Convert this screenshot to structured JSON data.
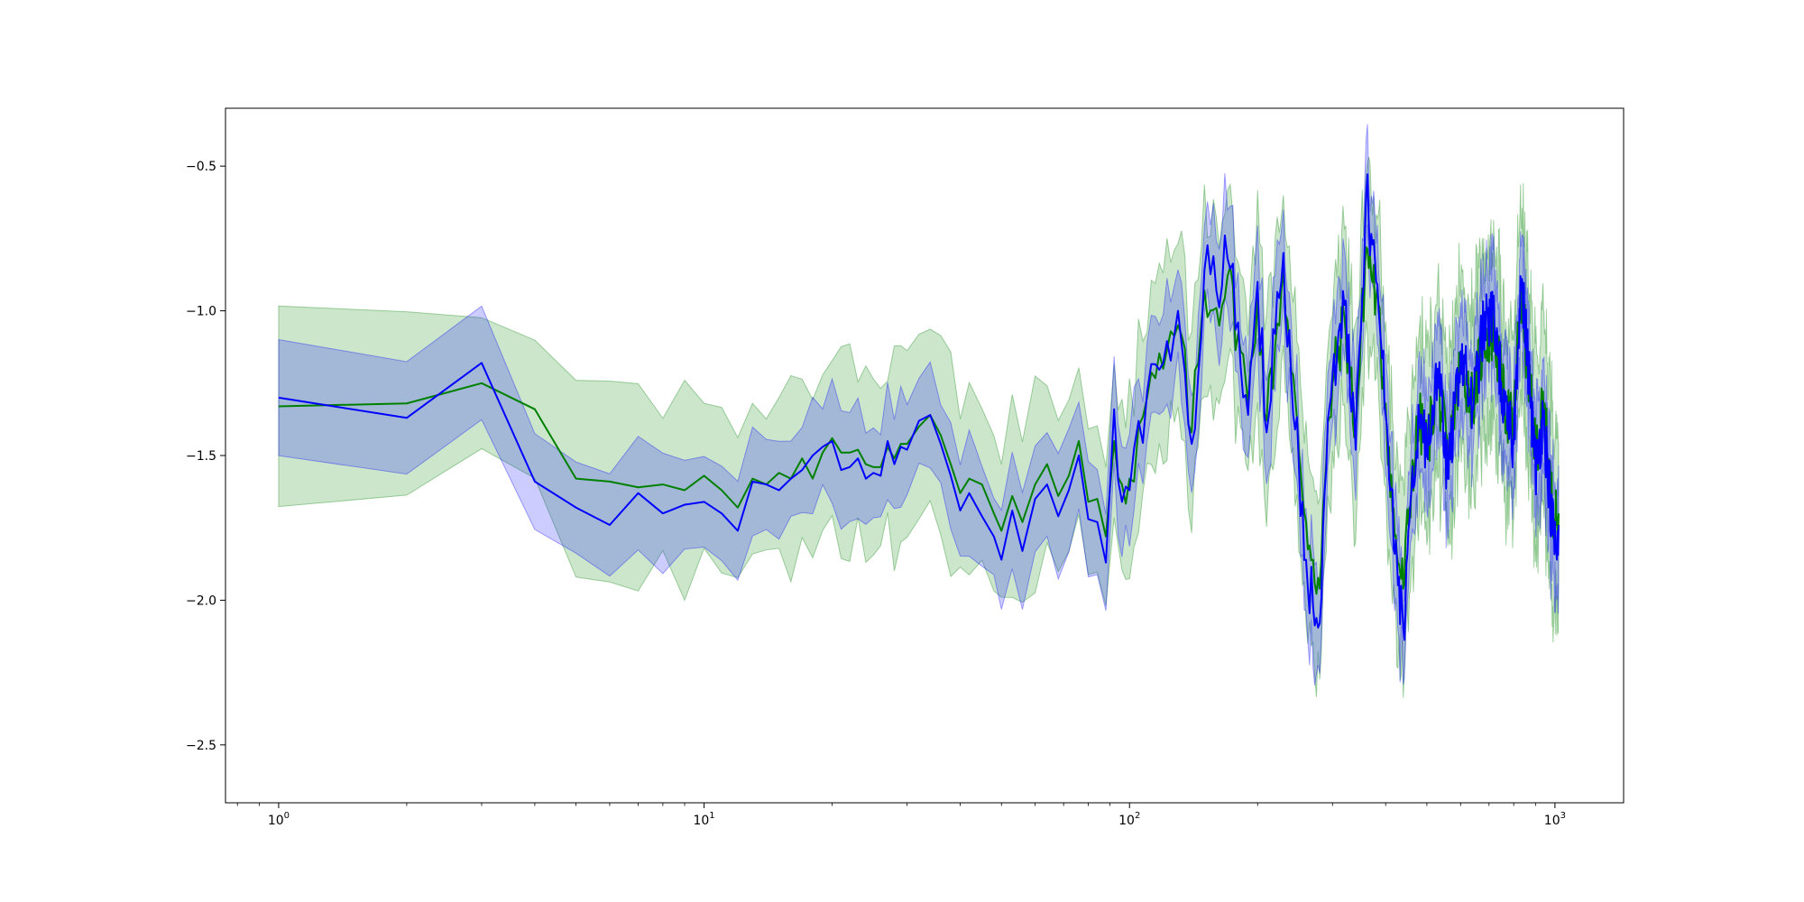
{
  "chart_data": {
    "type": "line",
    "title": "",
    "xlabel": "",
    "ylabel": "",
    "xscale": "log",
    "xlim": [
      0.75,
      1450
    ],
    "ylim": [
      -2.7,
      -0.3
    ],
    "grid": false,
    "legend": "none",
    "x_ticks": [
      {
        "base": "10",
        "exp": "0",
        "value": 1
      },
      {
        "base": "10",
        "exp": "1",
        "value": 10
      },
      {
        "base": "10",
        "exp": "2",
        "value": 100
      },
      {
        "base": "10",
        "exp": "3",
        "value": 1000
      }
    ],
    "y_ticks": [
      {
        "label": "−0.5",
        "value": -0.5
      },
      {
        "label": "−1.0",
        "value": -1.0
      },
      {
        "label": "−1.5",
        "value": -1.5
      },
      {
        "label": "−2.0",
        "value": -2.0
      },
      {
        "label": "−2.5",
        "value": -2.5
      }
    ],
    "series": [
      {
        "color": "#008000",
        "band_color": "#008000",
        "band_opacity": 0.2,
        "band_width": 0.3,
        "points": [
          [
            1,
            -1.33
          ],
          [
            2,
            -1.32
          ],
          [
            3,
            -1.25
          ],
          [
            4,
            -1.34
          ],
          [
            5,
            -1.58
          ],
          [
            6,
            -1.59
          ],
          [
            7,
            -1.61
          ],
          [
            8,
            -1.6
          ],
          [
            9,
            -1.62
          ],
          [
            10,
            -1.57
          ],
          [
            11,
            -1.62
          ],
          [
            12,
            -1.68
          ],
          [
            13,
            -1.58
          ],
          [
            14,
            -1.6
          ],
          [
            15,
            -1.56
          ],
          [
            16,
            -1.58
          ],
          [
            17,
            -1.51
          ],
          [
            18,
            -1.58
          ],
          [
            19,
            -1.49
          ],
          [
            20,
            -1.44
          ],
          [
            21,
            -1.49
          ],
          [
            22,
            -1.49
          ],
          [
            23,
            -1.48
          ],
          [
            24,
            -1.53
          ],
          [
            25,
            -1.54
          ],
          [
            26,
            -1.54
          ],
          [
            27,
            -1.47
          ],
          [
            28,
            -1.51
          ],
          [
            29,
            -1.46
          ],
          [
            30,
            -1.46
          ],
          [
            32,
            -1.4
          ],
          [
            34,
            -1.36
          ],
          [
            36,
            -1.43
          ],
          [
            38,
            -1.53
          ],
          [
            40,
            -1.63
          ],
          [
            42,
            -1.58
          ],
          [
            45,
            -1.6
          ],
          [
            48,
            -1.7
          ],
          [
            50,
            -1.76
          ],
          [
            53,
            -1.64
          ],
          [
            56,
            -1.73
          ],
          [
            60,
            -1.6
          ],
          [
            64,
            -1.53
          ],
          [
            68,
            -1.64
          ],
          [
            72,
            -1.57
          ],
          [
            76,
            -1.45
          ],
          [
            80,
            -1.66
          ],
          [
            84,
            -1.65
          ],
          [
            88,
            -1.78
          ],
          [
            92,
            -1.45
          ],
          [
            96,
            -1.6
          ],
          [
            100,
            -1.58
          ],
          [
            110,
            -1.3
          ],
          [
            120,
            -1.2
          ],
          [
            130,
            -1.05
          ],
          [
            140,
            -1.42
          ],
          [
            150,
            -0.93
          ],
          [
            160,
            -0.99
          ],
          [
            170,
            -0.88
          ],
          [
            180,
            -1.08
          ],
          [
            190,
            -1.32
          ],
          [
            200,
            -0.95
          ],
          [
            210,
            -1.38
          ],
          [
            220,
            -1.12
          ],
          [
            230,
            -0.86
          ],
          [
            240,
            -1.21
          ],
          [
            250,
            -1.48
          ],
          [
            260,
            -1.73
          ],
          [
            270,
            -1.86
          ],
          [
            280,
            -1.96
          ],
          [
            290,
            -1.52
          ],
          [
            300,
            -1.25
          ],
          [
            320,
            -1.02
          ],
          [
            340,
            -1.42
          ],
          [
            360,
            -0.78
          ],
          [
            380,
            -0.95
          ],
          [
            400,
            -1.32
          ],
          [
            420,
            -1.78
          ],
          [
            440,
            -1.96
          ],
          [
            460,
            -1.58
          ],
          [
            480,
            -1.38
          ],
          [
            500,
            -1.47
          ],
          [
            530,
            -1.24
          ],
          [
            560,
            -1.53
          ],
          [
            600,
            -1.18
          ],
          [
            640,
            -1.31
          ],
          [
            680,
            -1.1
          ],
          [
            720,
            -1.07
          ],
          [
            760,
            -1.32
          ],
          [
            800,
            -1.41
          ],
          [
            830,
            -0.92
          ],
          [
            860,
            -1.17
          ],
          [
            900,
            -1.49
          ],
          [
            940,
            -1.33
          ],
          [
            980,
            -1.64
          ],
          [
            1010,
            -1.74
          ],
          [
            1020,
            -1.7
          ]
        ]
      },
      {
        "color": "#0000ff",
        "band_color": "#0000ff",
        "band_opacity": 0.2,
        "band_width": 0.17,
        "points": [
          [
            1,
            -1.3
          ],
          [
            2,
            -1.37
          ],
          [
            3,
            -1.18
          ],
          [
            4,
            -1.59
          ],
          [
            5,
            -1.68
          ],
          [
            6,
            -1.74
          ],
          [
            7,
            -1.63
          ],
          [
            8,
            -1.7
          ],
          [
            9,
            -1.67
          ],
          [
            10,
            -1.66
          ],
          [
            11,
            -1.7
          ],
          [
            12,
            -1.76
          ],
          [
            13,
            -1.59
          ],
          [
            14,
            -1.6
          ],
          [
            15,
            -1.62
          ],
          [
            16,
            -1.58
          ],
          [
            17,
            -1.55
          ],
          [
            18,
            -1.5
          ],
          [
            19,
            -1.47
          ],
          [
            20,
            -1.45
          ],
          [
            21,
            -1.55
          ],
          [
            22,
            -1.54
          ],
          [
            23,
            -1.51
          ],
          [
            24,
            -1.58
          ],
          [
            25,
            -1.56
          ],
          [
            26,
            -1.57
          ],
          [
            27,
            -1.45
          ],
          [
            28,
            -1.53
          ],
          [
            29,
            -1.47
          ],
          [
            30,
            -1.48
          ],
          [
            32,
            -1.38
          ],
          [
            34,
            -1.36
          ],
          [
            36,
            -1.46
          ],
          [
            38,
            -1.57
          ],
          [
            40,
            -1.69
          ],
          [
            42,
            -1.63
          ],
          [
            45,
            -1.71
          ],
          [
            48,
            -1.78
          ],
          [
            50,
            -1.86
          ],
          [
            53,
            -1.69
          ],
          [
            56,
            -1.83
          ],
          [
            60,
            -1.65
          ],
          [
            64,
            -1.6
          ],
          [
            68,
            -1.71
          ],
          [
            72,
            -1.62
          ],
          [
            76,
            -1.5
          ],
          [
            80,
            -1.72
          ],
          [
            84,
            -1.73
          ],
          [
            88,
            -1.87
          ],
          [
            92,
            -1.34
          ],
          [
            96,
            -1.66
          ],
          [
            100,
            -1.62
          ],
          [
            110,
            -1.28
          ],
          [
            120,
            -1.18
          ],
          [
            130,
            -1.0
          ],
          [
            140,
            -1.46
          ],
          [
            150,
            -0.86
          ],
          [
            160,
            -0.93
          ],
          [
            170,
            -0.82
          ],
          [
            180,
            -1.04
          ],
          [
            190,
            -1.36
          ],
          [
            200,
            -0.9
          ],
          [
            210,
            -1.42
          ],
          [
            220,
            -1.08
          ],
          [
            230,
            -0.8
          ],
          [
            240,
            -1.24
          ],
          [
            250,
            -1.53
          ],
          [
            260,
            -1.86
          ],
          [
            270,
            -2.02
          ],
          [
            280,
            -2.08
          ],
          [
            290,
            -1.55
          ],
          [
            300,
            -1.22
          ],
          [
            320,
            -0.98
          ],
          [
            340,
            -1.48
          ],
          [
            360,
            -0.6
          ],
          [
            380,
            -0.9
          ],
          [
            400,
            -1.36
          ],
          [
            420,
            -1.84
          ],
          [
            440,
            -2.1
          ],
          [
            460,
            -1.62
          ],
          [
            480,
            -1.36
          ],
          [
            500,
            -1.5
          ],
          [
            530,
            -1.2
          ],
          [
            560,
            -1.58
          ],
          [
            600,
            -1.14
          ],
          [
            640,
            -1.34
          ],
          [
            680,
            -1.05
          ],
          [
            720,
            -1.02
          ],
          [
            760,
            -1.36
          ],
          [
            800,
            -1.46
          ],
          [
            830,
            -0.88
          ],
          [
            860,
            -1.13
          ],
          [
            900,
            -1.55
          ],
          [
            940,
            -1.36
          ],
          [
            980,
            -1.7
          ],
          [
            1010,
            -1.86
          ],
          [
            1020,
            -1.74
          ]
        ]
      }
    ]
  }
}
